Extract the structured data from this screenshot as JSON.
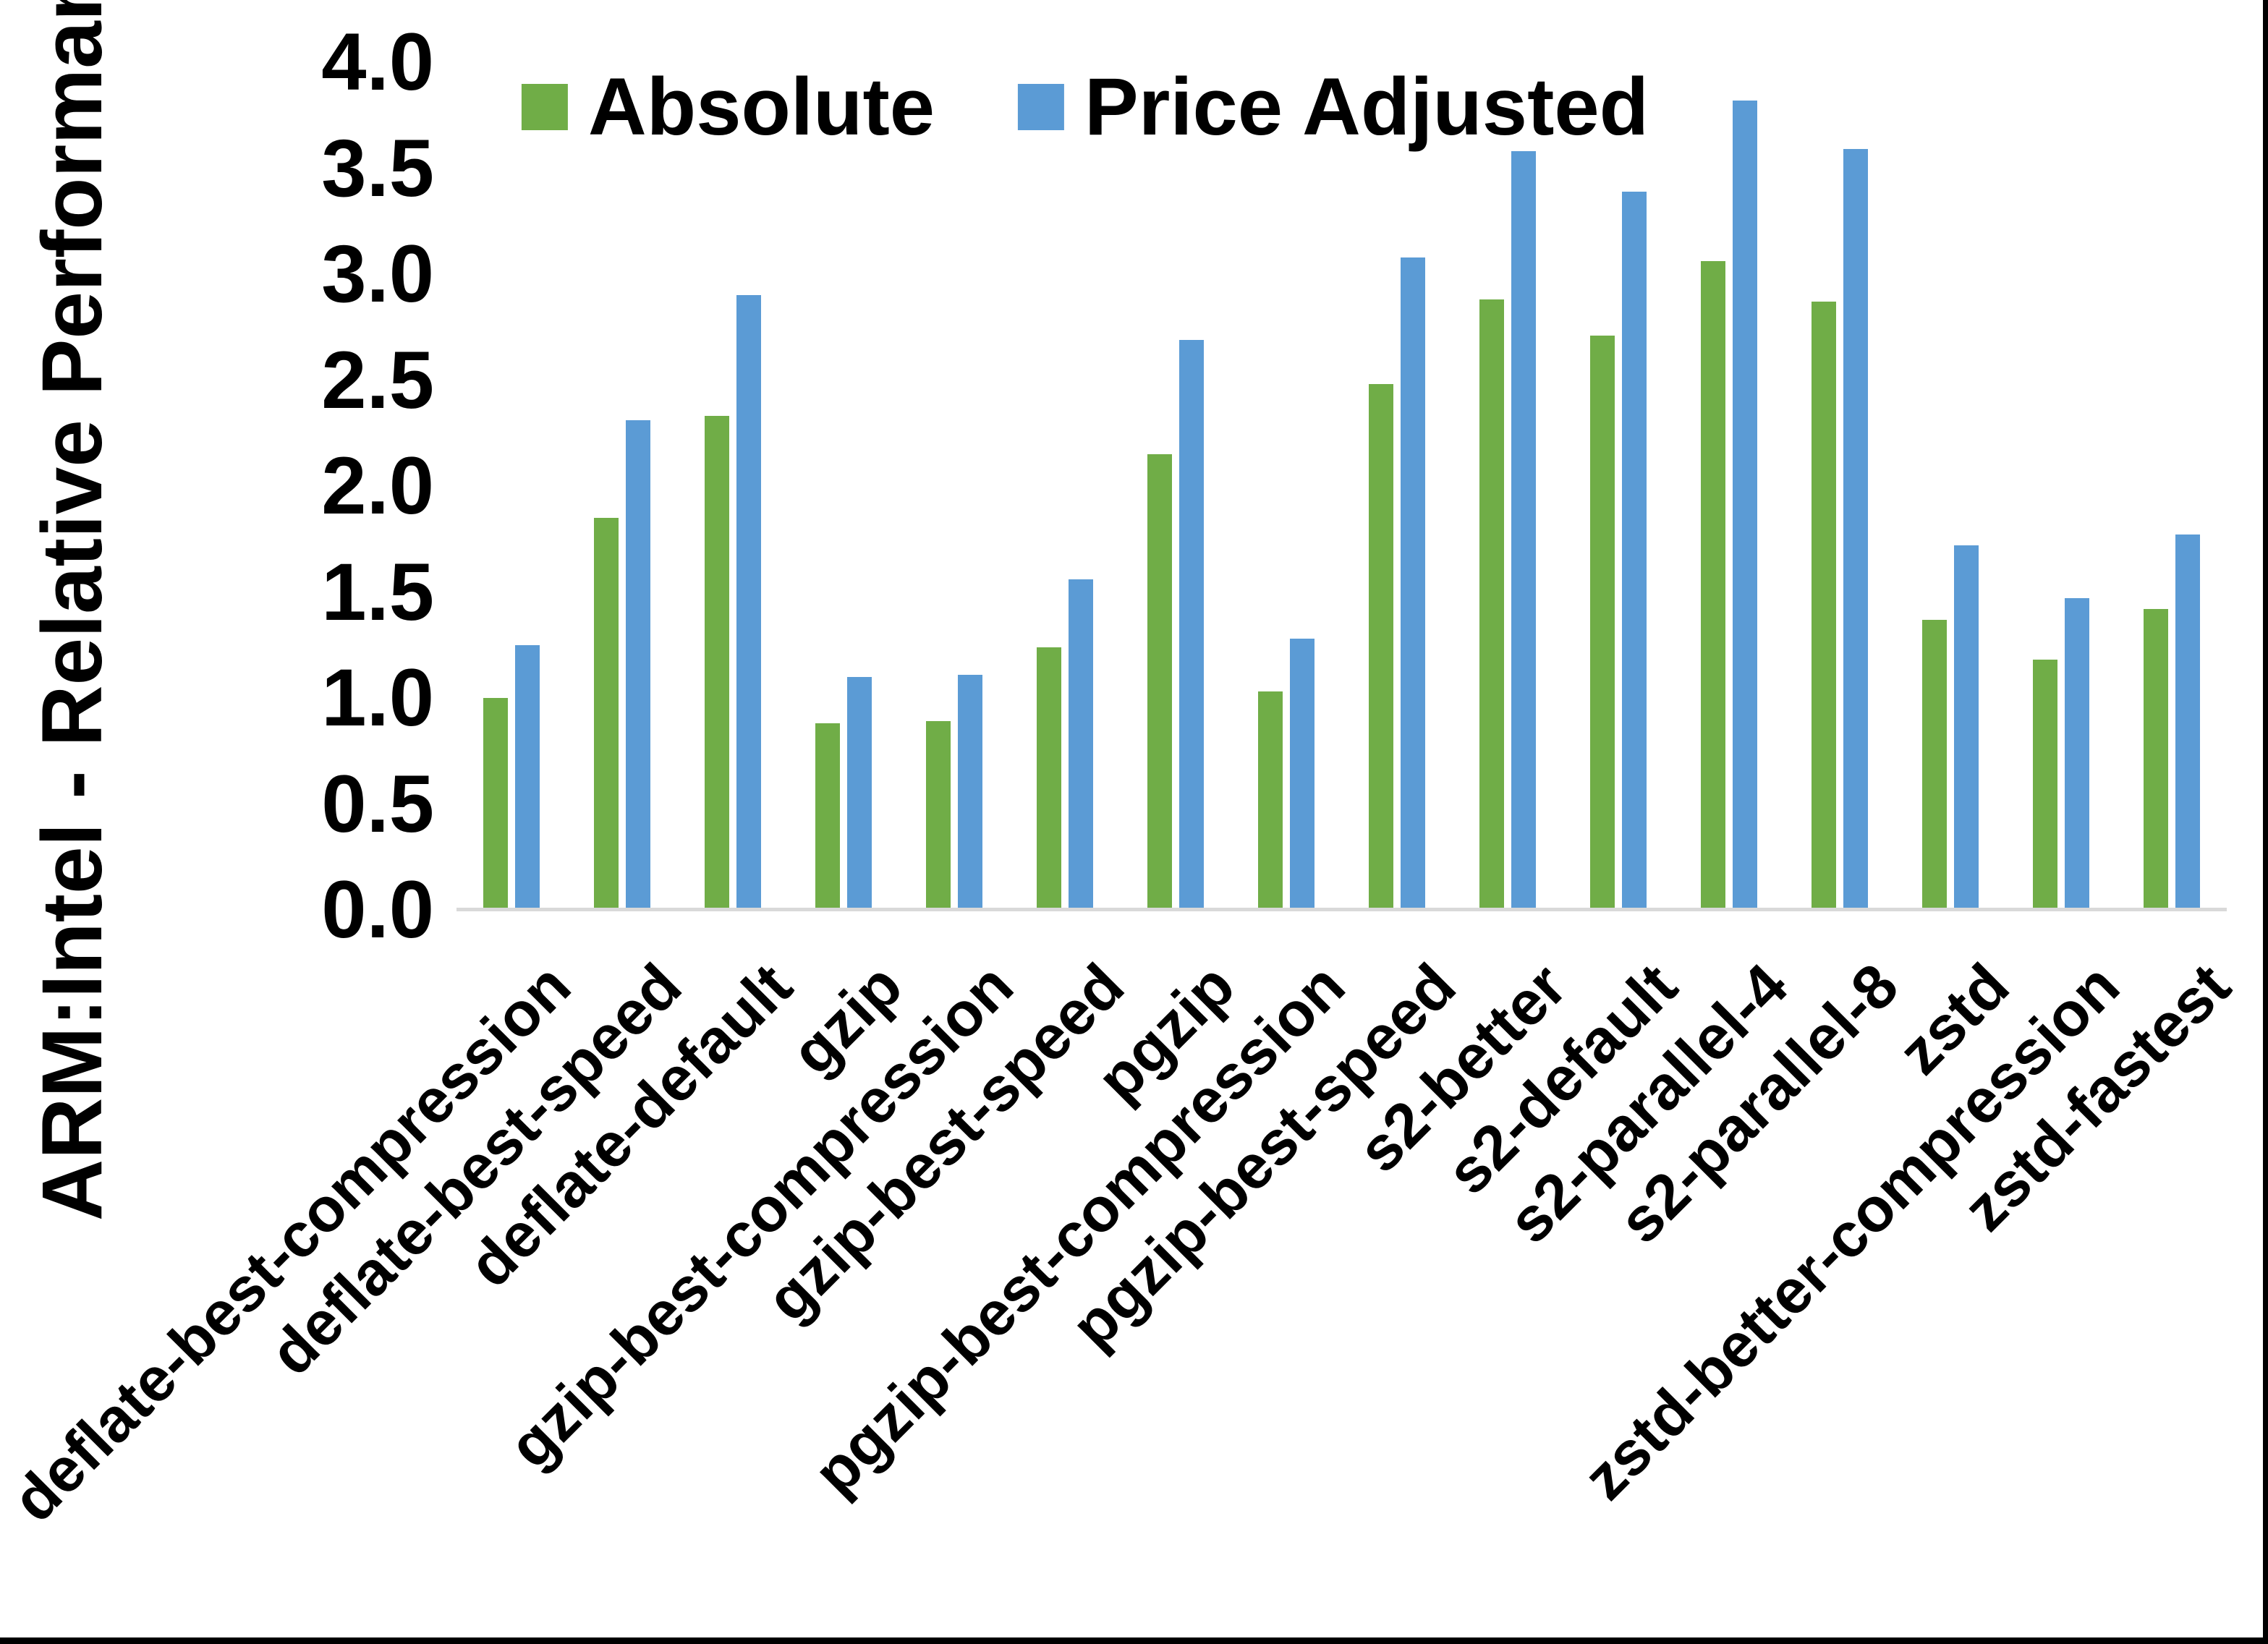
{
  "chart_data": {
    "type": "bar",
    "title": "",
    "ylabel": "ARM:Intel - Relative Performance",
    "xlabel": "",
    "ylim": [
      0.0,
      4.0
    ],
    "ytick_step": 0.5,
    "yticks": [
      "0.0",
      "0.5",
      "1.0",
      "1.5",
      "2.0",
      "2.5",
      "3.0",
      "3.5",
      "4.0"
    ],
    "grid": false,
    "legend_position": "top-center",
    "categories": [
      "deflate-best-compression",
      "deflate-best-speed",
      "deflate-default",
      "gzip",
      "gzip-best-compression",
      "gzip-best-speed",
      "pgzip",
      "pgzip-best-compression",
      "pgzip-best-speed",
      "s2-better",
      "s2-default",
      "s2-parallel-4",
      "s2-parallel-8",
      "zstd",
      "zstd-better-compression",
      "zstd-fastest"
    ],
    "series": [
      {
        "name": "Absolute",
        "color": "#70AD47",
        "values": [
          1.0,
          1.85,
          2.33,
          0.88,
          0.89,
          1.24,
          2.15,
          1.03,
          2.48,
          2.88,
          2.71,
          3.06,
          2.87,
          1.37,
          1.18,
          1.42
        ]
      },
      {
        "name": "Price Adjusted",
        "color": "#5B9BD5",
        "values": [
          1.25,
          2.31,
          2.9,
          1.1,
          1.11,
          1.56,
          2.69,
          1.28,
          3.08,
          3.58,
          3.39,
          3.82,
          3.59,
          1.72,
          1.47,
          1.77
        ]
      }
    ],
    "axis_line_color": "#D9D9D9",
    "text_color": "#000000",
    "background": "#FFFFFF",
    "frame_border_color": "#000000"
  }
}
